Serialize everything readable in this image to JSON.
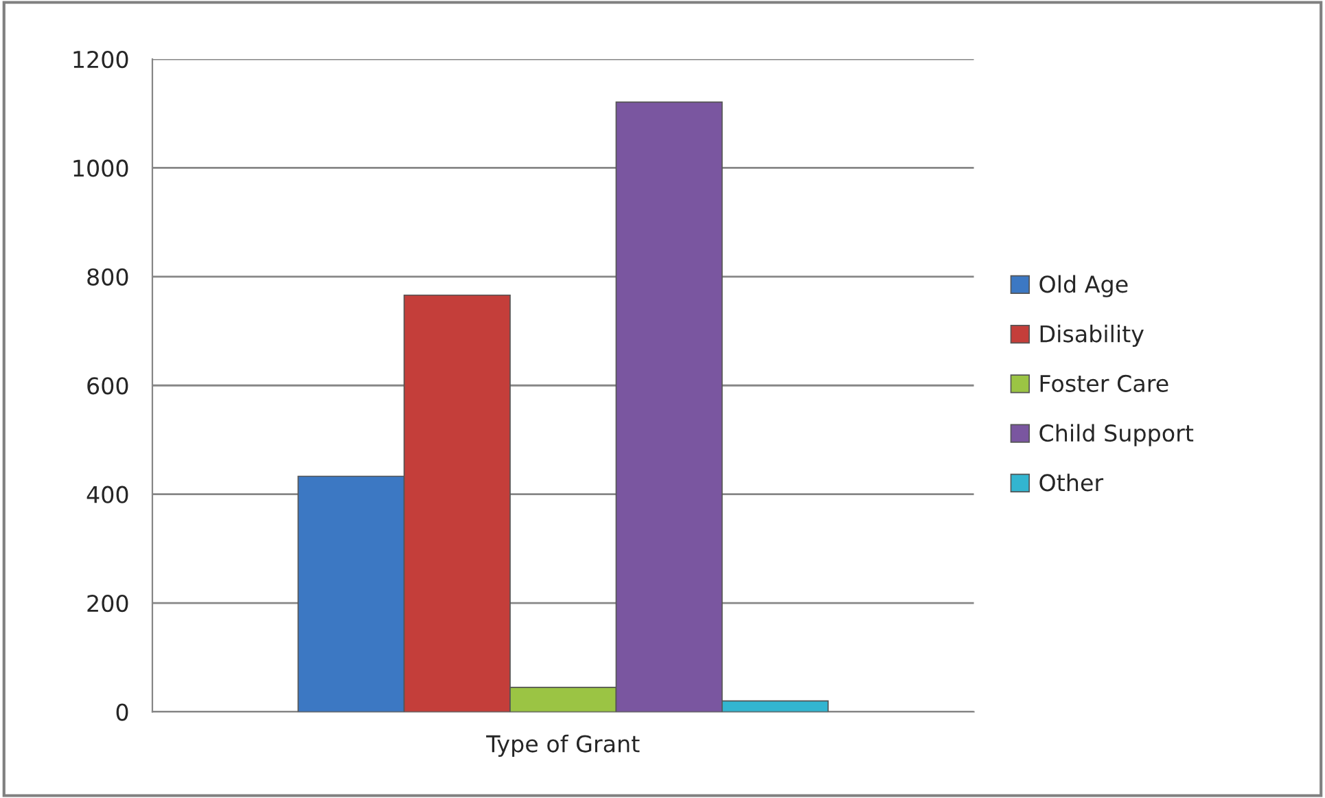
{
  "chart_data": {
    "type": "bar",
    "categories": [
      "Type of Grant"
    ],
    "series": [
      {
        "name": "Old Age",
        "color": "#3c78c3",
        "values": [
          433
        ]
      },
      {
        "name": "Disability",
        "color": "#c43e3a",
        "values": [
          766
        ]
      },
      {
        "name": "Foster Care",
        "color": "#9bc444",
        "values": [
          45
        ]
      },
      {
        "name": "Child Support",
        "color": "#7a56a0",
        "values": [
          1121
        ]
      },
      {
        "name": "Other",
        "color": "#33b5d0",
        "values": [
          20
        ]
      }
    ],
    "ylim": [
      0,
      1200
    ],
    "yticks": [
      0,
      200,
      400,
      600,
      800,
      1000,
      1200
    ],
    "grid": "y",
    "legend": "right"
  }
}
